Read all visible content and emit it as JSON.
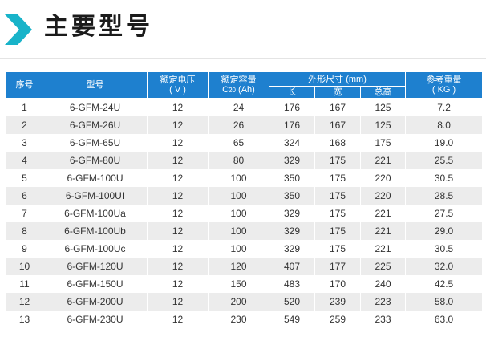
{
  "header": {
    "title": "主要型号"
  },
  "table": {
    "columns": {
      "index": "序号",
      "model": "型号",
      "voltage": "额定电压",
      "voltage_unit": "( V )",
      "capacity": "额定容量",
      "capacity_unit_c": "C",
      "capacity_unit_sub": "20",
      "capacity_unit_rest": " (Ah)",
      "dimensions": "外形尺寸 (mm)",
      "length": "长",
      "width": "宽",
      "height": "总高",
      "weight": "参考重量",
      "weight_unit": "( KG )"
    },
    "rows": [
      {
        "index": "1",
        "model": "6-GFM-24U",
        "voltage": "12",
        "capacity": "24",
        "length": "176",
        "width": "167",
        "height": "125",
        "weight": "7.2"
      },
      {
        "index": "2",
        "model": "6-GFM-26U",
        "voltage": "12",
        "capacity": "26",
        "length": "176",
        "width": "167",
        "height": "125",
        "weight": "8.0"
      },
      {
        "index": "3",
        "model": "6-GFM-65U",
        "voltage": "12",
        "capacity": "65",
        "length": "324",
        "width": "168",
        "height": "175",
        "weight": "19.0"
      },
      {
        "index": "4",
        "model": "6-GFM-80U",
        "voltage": "12",
        "capacity": "80",
        "length": "329",
        "width": "175",
        "height": "221",
        "weight": "25.5"
      },
      {
        "index": "5",
        "model": "6-GFM-100U",
        "voltage": "12",
        "capacity": "100",
        "length": "350",
        "width": "175",
        "height": "220",
        "weight": "30.5"
      },
      {
        "index": "6",
        "model": "6-GFM-100UI",
        "voltage": "12",
        "capacity": "100",
        "length": "350",
        "width": "175",
        "height": "220",
        "weight": "28.5"
      },
      {
        "index": "7",
        "model": "6-GFM-100Ua",
        "voltage": "12",
        "capacity": "100",
        "length": "329",
        "width": "175",
        "height": "221",
        "weight": "27.5"
      },
      {
        "index": "8",
        "model": "6-GFM-100Ub",
        "voltage": "12",
        "capacity": "100",
        "length": "329",
        "width": "175",
        "height": "221",
        "weight": "29.0"
      },
      {
        "index": "9",
        "model": "6-GFM-100Uc",
        "voltage": "12",
        "capacity": "100",
        "length": "329",
        "width": "175",
        "height": "221",
        "weight": "30.5"
      },
      {
        "index": "10",
        "model": "6-GFM-120U",
        "voltage": "12",
        "capacity": "120",
        "length": "407",
        "width": "177",
        "height": "225",
        "weight": "32.0"
      },
      {
        "index": "11",
        "model": "6-GFM-150U",
        "voltage": "12",
        "capacity": "150",
        "length": "483",
        "width": "170",
        "height": "240",
        "weight": "42.5"
      },
      {
        "index": "12",
        "model": "6-GFM-200U",
        "voltage": "12",
        "capacity": "200",
        "length": "520",
        "width": "239",
        "height": "223",
        "weight": "58.0"
      },
      {
        "index": "13",
        "model": "6-GFM-230U",
        "voltage": "12",
        "capacity": "230",
        "length": "549",
        "width": "259",
        "height": "233",
        "weight": "63.0"
      }
    ]
  },
  "colors": {
    "header_blue": "#1e80cf",
    "accent_teal": "#18b3c9",
    "row_stripe": "#ececec"
  },
  "icons": {
    "title_marker": "teal-chevron-arrow-icon"
  }
}
